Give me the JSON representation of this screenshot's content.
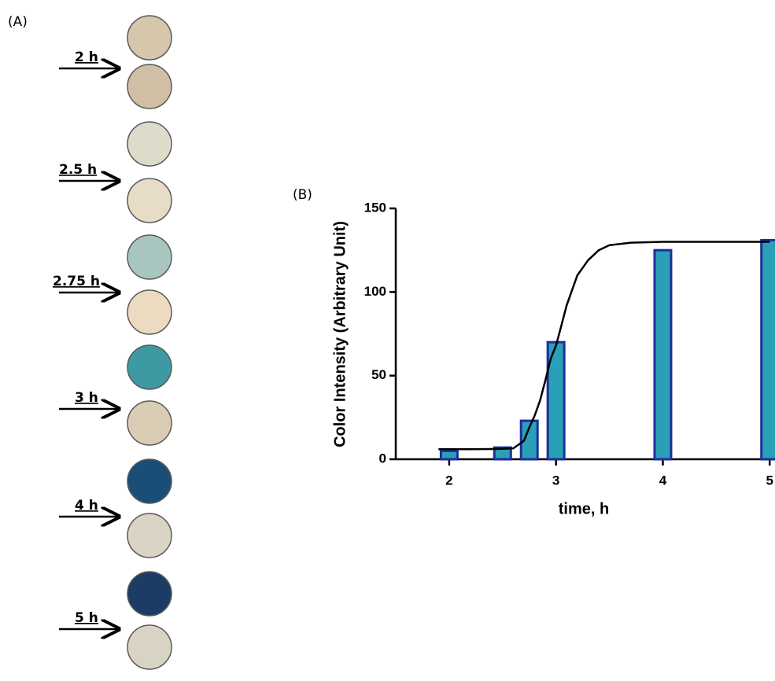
{
  "panel_a": {
    "label": "(A)",
    "arrows": [
      "2 h",
      "2.5 h",
      "2.75 h",
      "3 h",
      "4 h",
      "5 h"
    ]
  },
  "chart_data": {
    "type": "bar",
    "panel_label": "(B)",
    "x_label": "time, h",
    "y_label": "Color Intensity (Arbitrary Unit)",
    "x": [
      2,
      2.5,
      2.75,
      3,
      4,
      5
    ],
    "values": [
      5,
      7,
      23,
      70,
      125,
      131
    ],
    "color": "#2aa0b8",
    "edge_color": "#1c2f9c",
    "curve": {
      "color": "#000000",
      "x": [
        1.9,
        2.2,
        2.4,
        2.5,
        2.6,
        2.7,
        2.75,
        2.8,
        2.85,
        2.9,
        2.95,
        3,
        3.05,
        3.1,
        3.15,
        3.2,
        3.3,
        3.4,
        3.5,
        3.7,
        4,
        4.5,
        5
      ],
      "values": [
        6,
        6,
        6.1,
        6.2,
        6.5,
        11,
        19,
        26,
        35,
        47,
        60,
        68,
        80,
        92,
        101,
        110,
        119,
        125,
        128,
        129.5,
        130,
        130,
        130
      ]
    },
    "xlim": [
      1.5,
      5.05
    ],
    "ylim": [
      0,
      150
    ],
    "xticks": [
      2,
      3,
      4,
      5
    ],
    "yticks": [
      0,
      50,
      100,
      150
    ]
  }
}
